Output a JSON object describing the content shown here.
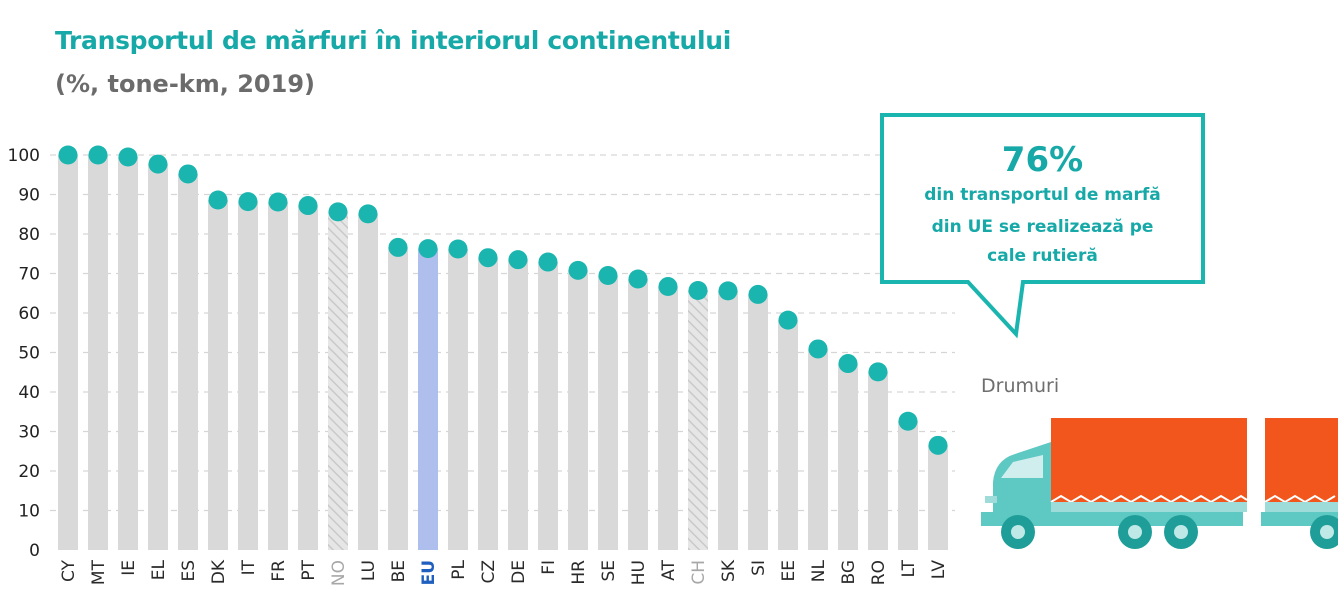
{
  "title": "Transportul de mărfuri în interiorul continentului",
  "subtitle": "(%, tone-km, 2019)",
  "callout": {
    "big_value": "76%",
    "line1": "din transportul de marfă",
    "line2": "din UE se realizează pe",
    "line3": "cale rutieră"
  },
  "road_label": "Drumuri",
  "colors": {
    "accent": "#1bb5b0",
    "bar": "#d9d9d9",
    "eu_bar": "#aebfee",
    "eu_label": "#1f5fbf",
    "truck_cargo": "#f2561d",
    "truck_cab": "#5ec8c3"
  },
  "chart_data": {
    "type": "bar",
    "categories": [
      "CY",
      "MT",
      "IE",
      "EL",
      "ES",
      "DK",
      "IT",
      "FR",
      "PT",
      "NO",
      "LU",
      "BE",
      "EU",
      "PL",
      "CZ",
      "DE",
      "FI",
      "HR",
      "SE",
      "HU",
      "AT",
      "CH",
      "SK",
      "SI",
      "EE",
      "NL",
      "BG",
      "RO",
      "LT",
      "LV"
    ],
    "values": [
      100,
      100,
      99.5,
      97.7,
      95.2,
      88.6,
      88.2,
      88.1,
      87.2,
      85.6,
      85.1,
      76.6,
      76.3,
      76.2,
      74.0,
      73.5,
      72.9,
      70.8,
      69.5,
      68.6,
      66.7,
      65.7,
      65.6,
      64.7,
      58.2,
      50.9,
      47.2,
      45.1,
      32.6,
      26.5
    ],
    "highlight": [
      "EU"
    ],
    "non_eu": [
      "NO",
      "CH"
    ],
    "ylim": [
      0,
      100
    ],
    "yticks": [
      0,
      10,
      20,
      30,
      40,
      50,
      60,
      70,
      80,
      90,
      100
    ],
    "grid": true,
    "xlabel": "",
    "ylabel": ""
  }
}
